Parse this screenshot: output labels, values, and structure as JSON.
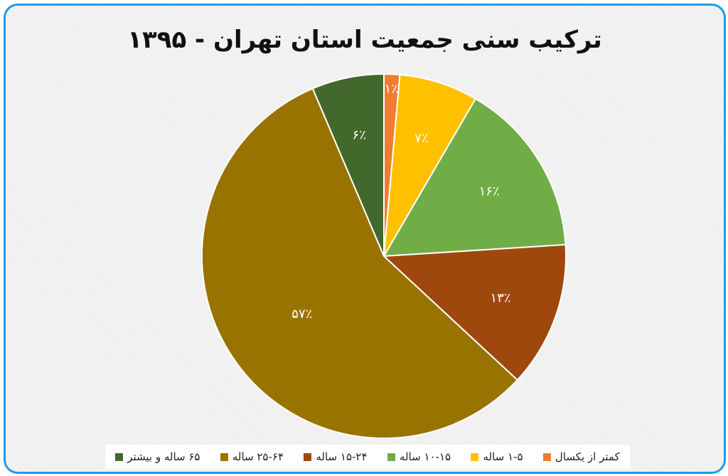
{
  "chart_data": {
    "type": "pie",
    "title": "ترکیب سنی جمعیت استان تهران - ۱۳۹۵",
    "start_angle_deg": 0,
    "direction": "clockwise",
    "categories": [
      "کمتر از یکسال",
      "۱-۵ ساله",
      "۱۰-۱۵ ساله",
      "۱۵-۲۴ ساله",
      "۲۵-۶۴ ساله",
      "۶۵ ساله و بیشتر"
    ],
    "values": [
      1.4,
      7.0,
      15.6,
      12.9,
      56.7,
      6.4
    ],
    "data_labels": [
      "۱٪",
      "۷٪",
      "۱۶٪",
      "۱۳٪",
      "۵۷٪",
      "۶٪"
    ],
    "colors": [
      "#ed7d31",
      "#ffc000",
      "#70ad47",
      "#9e480e",
      "#997300",
      "#43682b"
    ],
    "legend": "bottom"
  }
}
